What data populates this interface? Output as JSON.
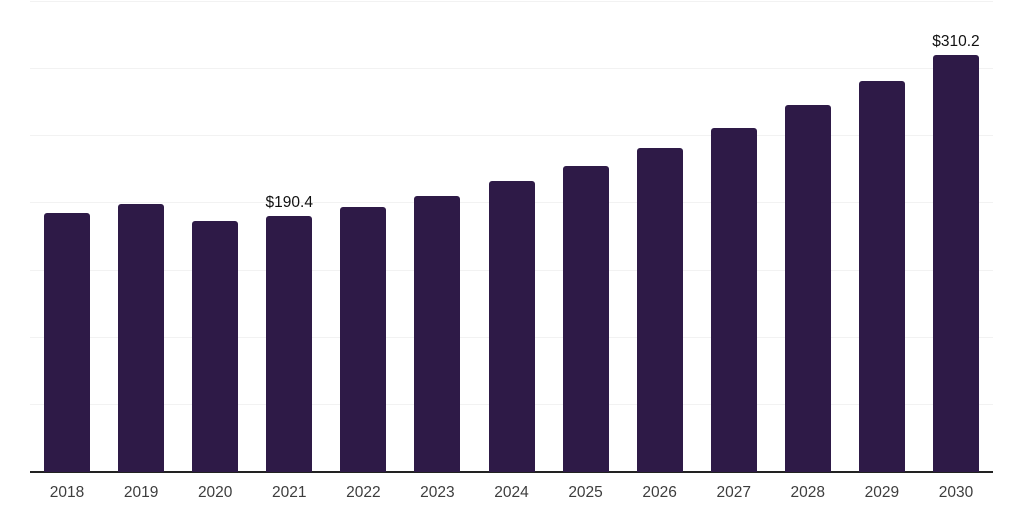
{
  "chart_data": {
    "type": "bar",
    "title": "",
    "xlabel": "",
    "ylabel": "",
    "categories": [
      "2018",
      "2019",
      "2020",
      "2021",
      "2022",
      "2023",
      "2024",
      "2025",
      "2026",
      "2027",
      "2028",
      "2029",
      "2030"
    ],
    "values": [
      193.0,
      199.6,
      187.2,
      190.4,
      197.4,
      205.8,
      216.4,
      227.7,
      241.0,
      256.1,
      273.0,
      291.0,
      310.2
    ],
    "value_prefix": "$",
    "annotations": [
      {
        "category": "2021",
        "text": "$190.4",
        "value": 190.4
      },
      {
        "category": "2030",
        "text": "$310.2",
        "value": 310.2
      }
    ],
    "ylim": [
      0,
      350
    ],
    "gridline_step": 50,
    "grid": "horizontal",
    "legend": "none",
    "y_axis_labels_visible": false,
    "colors": {
      "bar": "#2e1a47",
      "gridline": "#f2f2f2",
      "axis_line": "#222222",
      "tick_label": "#3d3d3d",
      "data_label": "#111111",
      "background": "#ffffff"
    }
  }
}
